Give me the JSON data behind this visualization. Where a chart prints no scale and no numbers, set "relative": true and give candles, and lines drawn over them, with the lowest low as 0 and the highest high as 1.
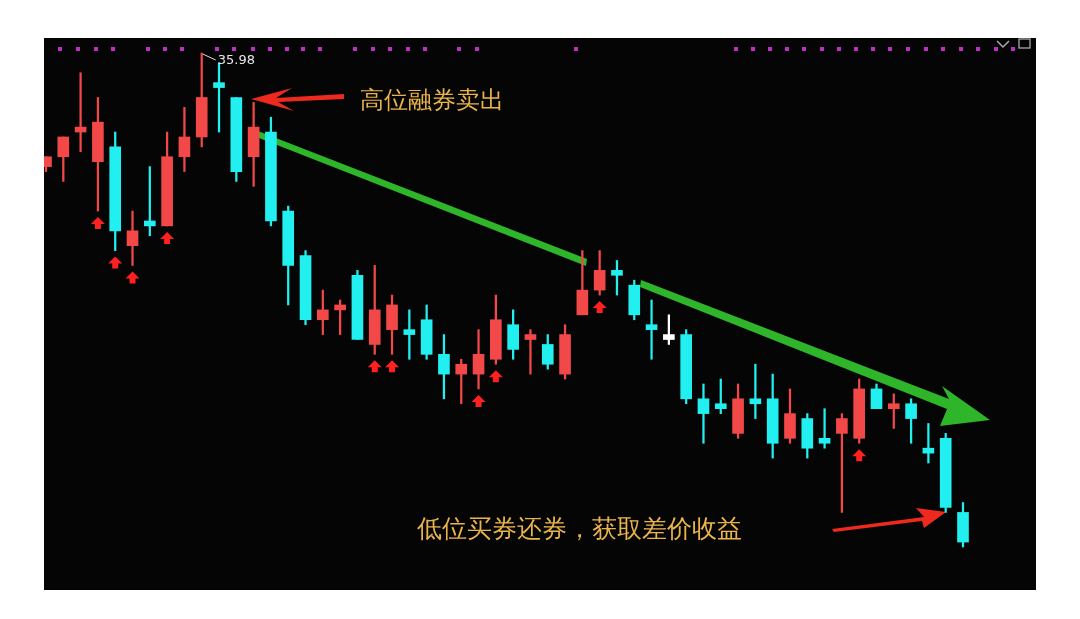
{
  "chart_data": {
    "type": "candlestick",
    "relative": true,
    "categories": [
      null,
      null,
      null,
      null,
      null,
      null,
      null,
      null,
      null,
      null,
      null,
      null,
      null,
      null,
      null,
      null,
      null,
      null,
      null,
      null,
      null,
      null,
      null,
      null,
      null,
      null,
      null,
      null,
      null,
      null,
      null,
      null,
      null,
      null,
      null,
      null,
      null,
      null,
      null,
      null,
      null,
      null,
      null,
      null,
      null,
      null,
      null,
      null,
      null,
      null,
      null,
      null,
      null,
      null
    ],
    "ohlc": [
      [
        0.77,
        0.79,
        0.76,
        0.79
      ],
      [
        0.79,
        0.83,
        0.74,
        0.83
      ],
      [
        0.84,
        0.96,
        0.8,
        0.85
      ],
      [
        0.78,
        0.91,
        0.68,
        0.86
      ],
      [
        0.81,
        0.84,
        0.6,
        0.64
      ],
      [
        0.61,
        0.68,
        0.57,
        0.64
      ],
      [
        0.66,
        0.77,
        0.63,
        0.65
      ],
      [
        0.65,
        0.84,
        0.65,
        0.79
      ],
      [
        0.79,
        0.89,
        0.76,
        0.83
      ],
      [
        0.83,
        1,
        0.81,
        0.91
      ],
      [
        0.94,
        0.98,
        0.84,
        0.93
      ],
      [
        0.91,
        0.91,
        0.74,
        0.76
      ],
      [
        0.79,
        0.9,
        0.73,
        0.85
      ],
      [
        0.84,
        0.87,
        0.65,
        0.66
      ],
      [
        0.68,
        0.69,
        0.49,
        0.57
      ],
      [
        0.59,
        0.6,
        0.45,
        0.46
      ],
      [
        0.46,
        0.52,
        0.43,
        0.48
      ],
      [
        0.48,
        0.5,
        0.43,
        0.49
      ],
      [
        0.55,
        0.56,
        0.42,
        0.42
      ],
      [
        0.41,
        0.57,
        0.39,
        0.48
      ],
      [
        0.44,
        0.51,
        0.39,
        0.49
      ],
      [
        0.44,
        0.48,
        0.38,
        0.43
      ],
      [
        0.46,
        0.49,
        0.38,
        0.39
      ],
      [
        0.39,
        0.43,
        0.3,
        0.35
      ],
      [
        0.35,
        0.38,
        0.29,
        0.37
      ],
      [
        0.35,
        0.44,
        0.32,
        0.39
      ],
      [
        0.38,
        0.51,
        0.37,
        0.46
      ],
      [
        0.45,
        0.48,
        0.38,
        0.4
      ],
      [
        0.42,
        0.44,
        0.35,
        0.43
      ],
      [
        0.41,
        0.43,
        0.36,
        0.37
      ],
      [
        0.35,
        0.45,
        0.34,
        0.43
      ],
      [
        0.47,
        0.6,
        0.47,
        0.52
      ],
      [
        0.52,
        0.6,
        0.51,
        0.56
      ],
      [
        0.56,
        0.58,
        0.51,
        0.55
      ],
      [
        0.53,
        0.54,
        0.46,
        0.47
      ],
      [
        0.45,
        0.5,
        0.38,
        0.44
      ],
      [
        0.43,
        0.47,
        0.41,
        0.42
      ],
      [
        0.43,
        0.44,
        0.29,
        0.3
      ],
      [
        0.3,
        0.33,
        0.21,
        0.27
      ],
      [
        0.29,
        0.34,
        0.27,
        0.28
      ],
      [
        0.23,
        0.33,
        0.22,
        0.3
      ],
      [
        0.3,
        0.37,
        0.26,
        0.29
      ],
      [
        0.3,
        0.35,
        0.18,
        0.21
      ],
      [
        0.22,
        0.32,
        0.21,
        0.27
      ],
      [
        0.26,
        0.27,
        0.18,
        0.2
      ],
      [
        0.22,
        0.28,
        0.2,
        0.21
      ],
      [
        0.23,
        0.27,
        0.07,
        0.26
      ],
      [
        0.22,
        0.34,
        0.21,
        0.32
      ],
      [
        0.32,
        0.33,
        0.28,
        0.28
      ],
      [
        0.28,
        0.31,
        0.24,
        0.29
      ],
      [
        0.29,
        0.3,
        0.21,
        0.26
      ],
      [
        0.2,
        0.25,
        0.17,
        0.19
      ],
      [
        0.22,
        0.23,
        0.07,
        0.08
      ],
      [
        0.07,
        0.09,
        0,
        0.01
      ]
    ],
    "colors": [
      "#f24848",
      "#f24848",
      "#f24848",
      "#f24848",
      "#22f0f0",
      "#f24848",
      "#22f0f0",
      "#f24848",
      "#f24848",
      "#f24848",
      "#22f0f0",
      "#22f0f0",
      "#f24848",
      "#22f0f0",
      "#22f0f0",
      "#22f0f0",
      "#f24848",
      "#f24848",
      "#22f0f0",
      "#f24848",
      "#f24848",
      "#22f0f0",
      "#22f0f0",
      "#22f0f0",
      "#f24848",
      "#f24848",
      "#f24848",
      "#22f0f0",
      "#f24848",
      "#22f0f0",
      "#f24848",
      "#f24848",
      "#f24848",
      "#22f0f0",
      "#22f0f0",
      "#22f0f0",
      "#ffffff",
      "#22f0f0",
      "#22f0f0",
      "#22f0f0",
      "#f24848",
      "#22f0f0",
      "#22f0f0",
      "#f24848",
      "#22f0f0",
      "#22f0f0",
      "#f24848",
      "#f24848",
      "#22f0f0",
      "#f24848",
      "#22f0f0",
      "#22f0f0",
      "#22f0f0",
      "#22f0f0"
    ],
    "annotations": [
      "35.98",
      "高位融券卖出",
      "低位买券还券，获取差价收益"
    ]
  }
}
